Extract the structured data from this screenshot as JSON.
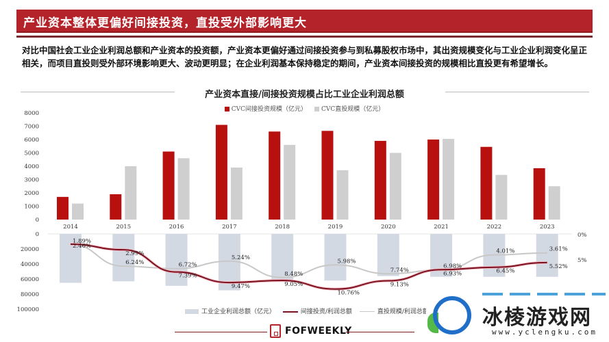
{
  "header": {
    "title": "产业资本整体更偏好间接投资，直投受外部影响更大"
  },
  "intro_text": "对比中国社会工业企业利润总额和产业资本的投资额，产业资本更偏好通过间接投资参与到私募股权市场中，其出资规模变化与工业企业利润变化呈正相关，而项目直投则受外部环境影响更大、波动更明显；在企业利润基本保持稳定的期间，产业资本间接投资的规模相比直投更有希望增长。",
  "colors": {
    "brand_red": "#b5232a",
    "indirect_bar": "#b80f0f",
    "direct_bar": "#cfcfcf",
    "profit_bar": "#d3d9e3",
    "indirect_line": "#7a1020",
    "direct_line": "#c8c8c8"
  },
  "chart_data": [
    {
      "type": "bar",
      "title": "产业资本直接/间接投资规模占比工业企业利润总额",
      "categories": [
        "2014",
        "2015",
        "2016",
        "2017",
        "2018",
        "2019",
        "2020",
        "2021",
        "2022",
        "2023"
      ],
      "series": [
        {
          "name": "CVC间接投资规模（亿元）",
          "values": [
            1700,
            1900,
            5100,
            7100,
            6600,
            6650,
            5900,
            6000,
            5450,
            3850
          ]
        },
        {
          "name": "CVC直投规模（亿元）",
          "values": [
            1200,
            4000,
            4600,
            3900,
            5600,
            3700,
            5000,
            6050,
            3350,
            2500
          ]
        }
      ],
      "ylim": [
        0,
        8000
      ],
      "yticks": [
        "8000",
        "7000",
        "6000",
        "5000",
        "4000",
        "3000",
        "2000",
        "1000",
        "0"
      ],
      "legend_position": "top",
      "grid": false
    },
    {
      "type": "bar+line",
      "categories": [
        "2014",
        "2015",
        "2016",
        "2017",
        "2018",
        "2019",
        "2020",
        "2021",
        "2022",
        "2023"
      ],
      "bar_series": {
        "name": "工业企业利润总额（亿元）",
        "values": [
          65000,
          63000,
          69000,
          75000,
          64000,
          62000,
          56000,
          57000,
          57000,
          57000
        ],
        "axis": "left",
        "inverted": true
      },
      "line_series": [
        {
          "name": "间接投资/利润总额",
          "values": [
            2.46,
            2.99,
            7.39,
            9.47,
            9.05,
            10.76,
            9.13,
            6.93,
            6.45,
            5.52
          ],
          "labels": [
            "2.46%",
            "2.99%",
            "7.39%",
            "9.47%",
            "9.05%",
            "10.76%",
            "9.13%",
            "6.93%",
            "6.45%",
            "5.52%"
          ]
        },
        {
          "name": "直投规模/利润总额",
          "values": [
            1.89,
            6.24,
            6.72,
            5.24,
            8.48,
            5.98,
            7.74,
            6.98,
            4.01,
            3.61
          ],
          "labels": [
            "1.89%",
            "6.24%",
            "6.72%",
            "5.24%",
            "8.48%",
            "5.98%",
            "7.74%",
            "6.98%",
            "4.01%",
            "3.61%"
          ]
        }
      ],
      "left_yticks": [
        "0",
        "20000",
        "40000",
        "60000",
        "80000",
        "100000"
      ],
      "right_yticks": [
        "0%",
        "5%"
      ],
      "legend_position": "bottom"
    }
  ],
  "legend_top": {
    "indirect": "CVC间接投资规模（亿元）",
    "direct": "CVC直投规模（亿元）"
  },
  "legend_bottom": {
    "profit": "工业企业利润总额（亿元）",
    "indirect_ratio": "间接投资/利润总额",
    "direct_ratio": "直投规模/利润总额"
  },
  "footer": {
    "brand": "FOFWEEKLY"
  },
  "watermark": {
    "name": "冰棱游戏网",
    "url": "www.yclengku.com"
  }
}
